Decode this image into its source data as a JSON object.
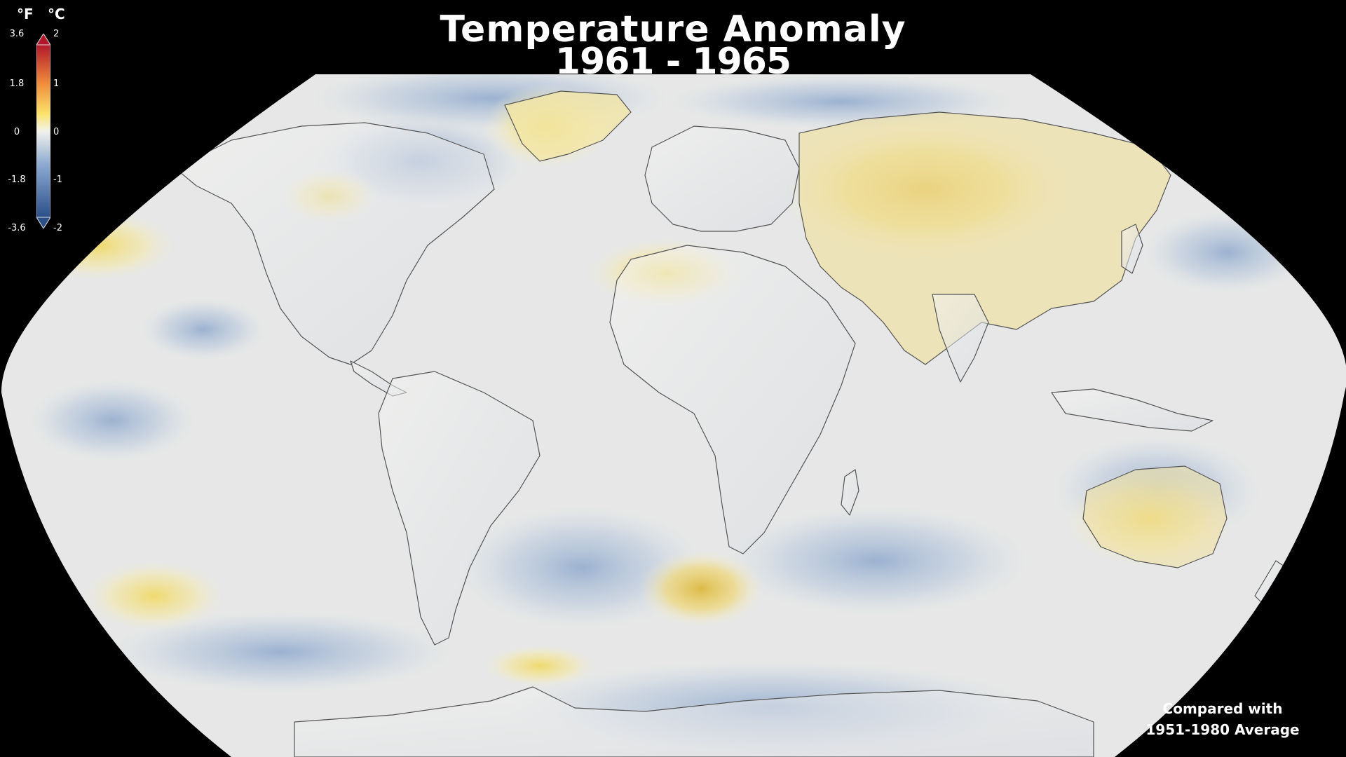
{
  "title": "Temperature Anomaly",
  "period": "1961 - 1965",
  "footnote": {
    "line1": "Compared with",
    "line2": "1951-1980 Average"
  },
  "legend": {
    "unit_f": "°F",
    "unit_c": "°C",
    "ticks_f": [
      "3.6",
      "1.8",
      "0",
      "-1.8",
      "-3.6"
    ],
    "ticks_c": [
      "2",
      "1",
      "0",
      "-1",
      "-2"
    ],
    "colors": {
      "max": "#b2182b",
      "high": "#ef8a3a",
      "warm": "#fbe36a",
      "neutral": "#f2f2ec",
      "cool": "#8aa8d0",
      "min": "#2c4f8a"
    }
  },
  "map": {
    "projection": "Robinson",
    "ocean_base_color": "#e4e6e8",
    "land_outline_color": "#4a4a4a"
  }
}
